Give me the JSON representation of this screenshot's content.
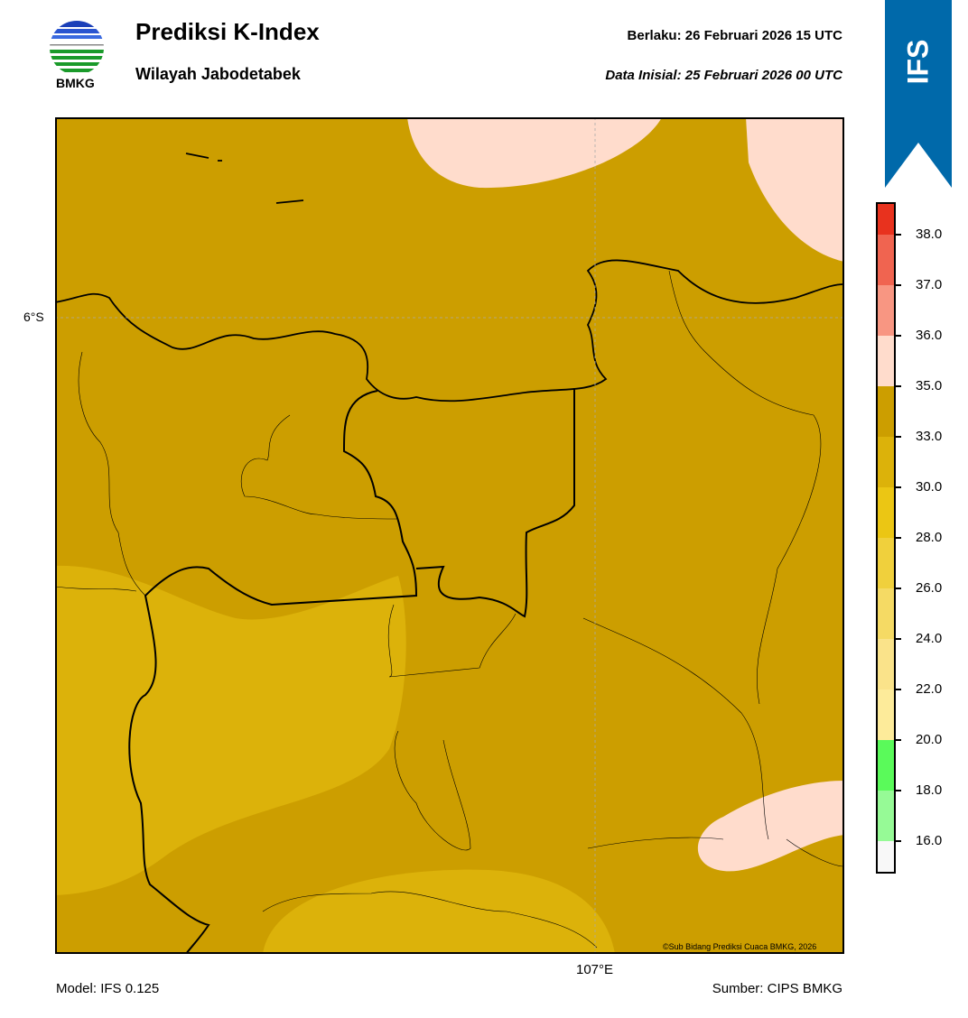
{
  "header": {
    "title": "Prediksi K-Index",
    "subtitle": "Wilayah Jabodetabek",
    "valid": "Berlaku:  26 Februari 2026 15 UTC",
    "initial": "Data Inisial:  25 Februari 2026 00 UTC",
    "logo_text": "BMKG",
    "badge": "IFS"
  },
  "map": {
    "lat_label": "6°S",
    "lon_label": "107°E",
    "copyright": "©Sub Bidang Prediksi Cuaca BMKG, 2026",
    "dominant_class": "33.0-35.0",
    "colors": {
      "base": "#cc9e00",
      "light": "#dcb20a",
      "pink": "#ffdccc"
    }
  },
  "footer": {
    "model": "Model: IFS 0.125",
    "source": "Sumber: CIPS BMKG"
  },
  "colorbar": {
    "colors": [
      "#e8321e",
      "#f06450",
      "#f89682",
      "#ffdccc",
      "#cc9e00",
      "#dcb20a",
      "#ebc614",
      "#f0d03c",
      "#f5da64",
      "#fae38a",
      "#fdeb9a",
      "#5afa5a",
      "#96fa96",
      "#f8f8f8"
    ],
    "ticks": [
      "38.0",
      "37.0",
      "36.0",
      "35.0",
      "33.0",
      "30.0",
      "28.0",
      "26.0",
      "24.0",
      "22.0",
      "20.0",
      "18.0",
      "16.0"
    ]
  }
}
